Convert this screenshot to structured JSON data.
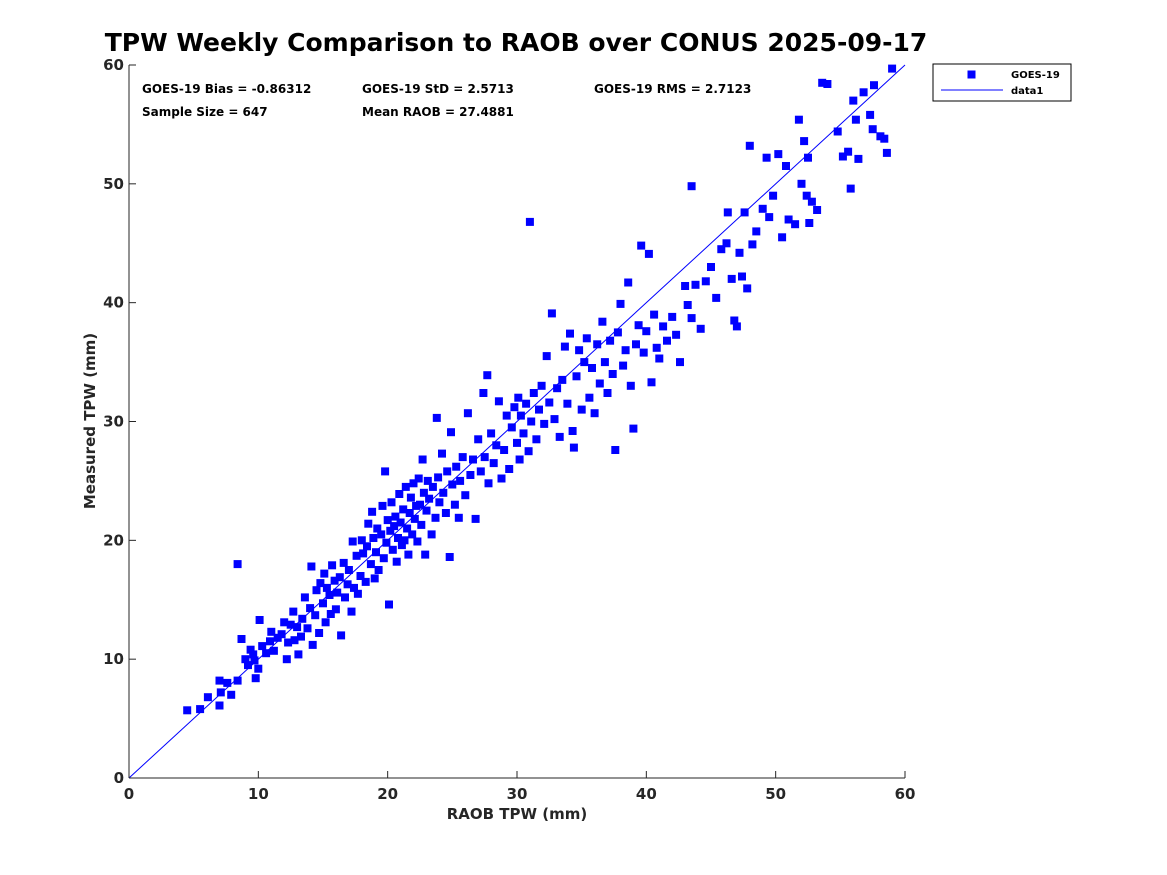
{
  "chart_data": {
    "type": "scatter",
    "title": "TPW Weekly Comparison to RAOB over CONUS 2025-09-17",
    "xlabel": "RAOB TPW (mm)",
    "ylabel": "Measured TPW (mm)",
    "xlim": [
      0,
      60
    ],
    "ylim": [
      0,
      60
    ],
    "xticks": [
      "0",
      "10",
      "20",
      "30",
      "40",
      "50",
      "60"
    ],
    "yticks": [
      "0",
      "10",
      "20",
      "30",
      "40",
      "50",
      "60"
    ],
    "grid": false,
    "legend_position": "outside-top-right",
    "marker_color": "#0000ff",
    "stats": {
      "bias": "GOES-19 Bias = -0.86312",
      "std": "GOES-19 StD = 2.5713",
      "rms": "GOES-19 RMS = 2.7123",
      "sample_size": "Sample Size = 647",
      "mean_raob": "Mean RAOB = 27.4881"
    },
    "series": [
      {
        "name": "GOES-19",
        "kind": "scatter",
        "marker": "square",
        "points": [
          [
            4.5,
            5.7
          ],
          [
            5.5,
            5.8
          ],
          [
            6.1,
            6.8
          ],
          [
            7.0,
            6.1
          ],
          [
            7.1,
            7.2
          ],
          [
            7.0,
            8.2
          ],
          [
            7.6,
            8.0
          ],
          [
            7.9,
            7.0
          ],
          [
            8.4,
            8.2
          ],
          [
            8.7,
            11.7
          ],
          [
            8.4,
            18.0
          ],
          [
            9.0,
            10.0
          ],
          [
            9.2,
            9.5
          ],
          [
            9.4,
            10.8
          ],
          [
            9.6,
            10.4
          ],
          [
            9.7,
            9.9
          ],
          [
            9.8,
            8.4
          ],
          [
            10.0,
            9.2
          ],
          [
            10.1,
            13.3
          ],
          [
            10.3,
            11.1
          ],
          [
            10.6,
            10.5
          ],
          [
            10.9,
            11.5
          ],
          [
            11.0,
            12.3
          ],
          [
            11.2,
            10.7
          ],
          [
            11.5,
            11.8
          ],
          [
            11.8,
            12.1
          ],
          [
            12.0,
            13.1
          ],
          [
            12.2,
            10.0
          ],
          [
            12.3,
            11.4
          ],
          [
            12.5,
            12.9
          ],
          [
            12.7,
            14.0
          ],
          [
            12.8,
            11.6
          ],
          [
            13.0,
            12.7
          ],
          [
            13.1,
            10.4
          ],
          [
            13.3,
            11.9
          ],
          [
            13.4,
            13.4
          ],
          [
            13.6,
            15.2
          ],
          [
            13.8,
            12.6
          ],
          [
            14.0,
            14.3
          ],
          [
            14.1,
            17.8
          ],
          [
            14.2,
            11.2
          ],
          [
            14.4,
            13.7
          ],
          [
            14.5,
            15.8
          ],
          [
            14.7,
            12.2
          ],
          [
            14.8,
            16.4
          ],
          [
            15.0,
            14.7
          ],
          [
            15.1,
            17.2
          ],
          [
            15.2,
            13.1
          ],
          [
            15.3,
            16.0
          ],
          [
            15.5,
            15.4
          ],
          [
            15.6,
            13.8
          ],
          [
            15.7,
            17.9
          ],
          [
            15.9,
            16.6
          ],
          [
            16.0,
            14.2
          ],
          [
            16.1,
            15.6
          ],
          [
            16.3,
            16.9
          ],
          [
            16.4,
            12.0
          ],
          [
            16.6,
            18.1
          ],
          [
            16.7,
            15.2
          ],
          [
            16.9,
            16.3
          ],
          [
            17.0,
            17.5
          ],
          [
            17.2,
            14.0
          ],
          [
            17.3,
            19.9
          ],
          [
            17.4,
            16.0
          ],
          [
            17.6,
            18.7
          ],
          [
            17.7,
            15.5
          ],
          [
            17.9,
            17.0
          ],
          [
            18.0,
            20.0
          ],
          [
            18.1,
            18.9
          ],
          [
            18.3,
            16.5
          ],
          [
            18.4,
            19.5
          ],
          [
            18.5,
            21.4
          ],
          [
            18.7,
            18.0
          ],
          [
            18.8,
            22.4
          ],
          [
            18.9,
            20.2
          ],
          [
            19.0,
            16.8
          ],
          [
            19.1,
            19.0
          ],
          [
            19.2,
            21.0
          ],
          [
            19.3,
            17.5
          ],
          [
            19.5,
            20.5
          ],
          [
            19.6,
            22.9
          ],
          [
            19.7,
            18.5
          ],
          [
            19.8,
            25.8
          ],
          [
            19.9,
            19.8
          ],
          [
            20.0,
            21.7
          ],
          [
            20.1,
            14.6
          ],
          [
            20.2,
            20.8
          ],
          [
            20.3,
            23.2
          ],
          [
            20.4,
            19.2
          ],
          [
            20.5,
            21.2
          ],
          [
            20.6,
            22.0
          ],
          [
            20.7,
            18.2
          ],
          [
            20.8,
            20.2
          ],
          [
            20.9,
            23.9
          ],
          [
            21.0,
            21.5
          ],
          [
            21.1,
            19.6
          ],
          [
            21.2,
            22.6
          ],
          [
            21.3,
            20.0
          ],
          [
            21.4,
            24.5
          ],
          [
            21.5,
            21.0
          ],
          [
            21.6,
            18.8
          ],
          [
            21.7,
            22.3
          ],
          [
            21.8,
            23.6
          ],
          [
            21.9,
            20.5
          ],
          [
            22.0,
            24.8
          ],
          [
            22.1,
            21.8
          ],
          [
            22.2,
            22.9
          ],
          [
            22.3,
            19.9
          ],
          [
            22.4,
            25.2
          ],
          [
            22.5,
            23.0
          ],
          [
            22.6,
            21.3
          ],
          [
            22.7,
            26.8
          ],
          [
            22.8,
            24.0
          ],
          [
            22.9,
            18.8
          ],
          [
            23.0,
            22.5
          ],
          [
            23.1,
            25.0
          ],
          [
            23.2,
            23.5
          ],
          [
            23.4,
            20.5
          ],
          [
            23.5,
            24.5
          ],
          [
            23.7,
            21.9
          ],
          [
            23.8,
            30.3
          ],
          [
            23.9,
            25.3
          ],
          [
            24.0,
            23.2
          ],
          [
            24.2,
            27.3
          ],
          [
            24.3,
            24.0
          ],
          [
            24.5,
            22.3
          ],
          [
            24.6,
            25.8
          ],
          [
            24.8,
            18.6
          ],
          [
            24.9,
            29.1
          ],
          [
            25.0,
            24.7
          ],
          [
            25.2,
            23.0
          ],
          [
            25.3,
            26.2
          ],
          [
            25.5,
            21.9
          ],
          [
            25.6,
            25.0
          ],
          [
            25.8,
            27.0
          ],
          [
            26.0,
            23.8
          ],
          [
            26.2,
            30.7
          ],
          [
            26.4,
            25.5
          ],
          [
            26.6,
            26.8
          ],
          [
            26.8,
            21.8
          ],
          [
            27.0,
            28.5
          ],
          [
            27.2,
            25.8
          ],
          [
            27.4,
            32.4
          ],
          [
            27.5,
            27.0
          ],
          [
            27.7,
            33.9
          ],
          [
            27.8,
            24.8
          ],
          [
            28.0,
            29.0
          ],
          [
            28.2,
            26.5
          ],
          [
            28.4,
            28.0
          ],
          [
            28.6,
            31.7
          ],
          [
            28.8,
            25.2
          ],
          [
            29.0,
            27.6
          ],
          [
            29.2,
            30.5
          ],
          [
            29.4,
            26.0
          ],
          [
            29.6,
            29.5
          ],
          [
            29.8,
            31.2
          ],
          [
            30.0,
            28.2
          ],
          [
            30.1,
            32.0
          ],
          [
            30.2,
            26.8
          ],
          [
            30.3,
            30.5
          ],
          [
            30.5,
            29.0
          ],
          [
            30.7,
            31.5
          ],
          [
            30.9,
            27.5
          ],
          [
            31.0,
            46.8
          ],
          [
            31.1,
            30.0
          ],
          [
            31.3,
            32.4
          ],
          [
            31.5,
            28.5
          ],
          [
            31.7,
            31.0
          ],
          [
            31.9,
            33.0
          ],
          [
            32.1,
            29.8
          ],
          [
            32.3,
            35.5
          ],
          [
            32.5,
            31.6
          ],
          [
            32.7,
            39.1
          ],
          [
            32.9,
            30.2
          ],
          [
            33.1,
            32.8
          ],
          [
            33.3,
            28.7
          ],
          [
            33.5,
            33.5
          ],
          [
            33.7,
            36.3
          ],
          [
            33.9,
            31.5
          ],
          [
            34.1,
            37.4
          ],
          [
            34.3,
            29.2
          ],
          [
            34.4,
            27.8
          ],
          [
            34.6,
            33.8
          ],
          [
            34.8,
            36.0
          ],
          [
            35.0,
            31.0
          ],
          [
            35.2,
            35.0
          ],
          [
            35.4,
            37.0
          ],
          [
            35.6,
            32.0
          ],
          [
            35.8,
            34.5
          ],
          [
            36.0,
            30.7
          ],
          [
            36.2,
            36.5
          ],
          [
            36.4,
            33.2
          ],
          [
            36.6,
            38.4
          ],
          [
            36.8,
            35.0
          ],
          [
            37.0,
            32.4
          ],
          [
            37.2,
            36.8
          ],
          [
            37.4,
            34.0
          ],
          [
            37.6,
            27.6
          ],
          [
            37.8,
            37.5
          ],
          [
            38.0,
            39.9
          ],
          [
            38.2,
            34.7
          ],
          [
            38.4,
            36.0
          ],
          [
            38.6,
            41.7
          ],
          [
            38.8,
            33.0
          ],
          [
            39.0,
            29.4
          ],
          [
            39.2,
            36.5
          ],
          [
            39.4,
            38.1
          ],
          [
            39.6,
            44.8
          ],
          [
            39.8,
            35.8
          ],
          [
            40.0,
            37.6
          ],
          [
            40.2,
            44.1
          ],
          [
            40.4,
            33.3
          ],
          [
            40.6,
            39.0
          ],
          [
            40.8,
            36.2
          ],
          [
            41.0,
            35.3
          ],
          [
            41.3,
            38.0
          ],
          [
            41.6,
            36.8
          ],
          [
            42.0,
            38.8
          ],
          [
            42.3,
            37.3
          ],
          [
            42.6,
            35.0
          ],
          [
            43.0,
            41.4
          ],
          [
            43.2,
            39.8
          ],
          [
            43.5,
            38.7
          ],
          [
            43.5,
            49.8
          ],
          [
            43.8,
            41.5
          ],
          [
            44.2,
            37.8
          ],
          [
            44.6,
            41.8
          ],
          [
            45.0,
            43.0
          ],
          [
            45.4,
            40.4
          ],
          [
            45.8,
            44.5
          ],
          [
            46.2,
            45.0
          ],
          [
            46.3,
            47.6
          ],
          [
            46.6,
            42.0
          ],
          [
            46.8,
            38.5
          ],
          [
            47.0,
            38.0
          ],
          [
            47.2,
            44.2
          ],
          [
            47.4,
            42.2
          ],
          [
            47.6,
            47.6
          ],
          [
            47.8,
            41.2
          ],
          [
            48.0,
            53.2
          ],
          [
            48.2,
            44.9
          ],
          [
            48.5,
            46.0
          ],
          [
            49.0,
            47.9
          ],
          [
            49.3,
            52.2
          ],
          [
            49.5,
            47.2
          ],
          [
            49.8,
            49.0
          ],
          [
            50.2,
            52.5
          ],
          [
            50.5,
            45.5
          ],
          [
            50.8,
            51.5
          ],
          [
            51.0,
            47.0
          ],
          [
            51.5,
            46.6
          ],
          [
            51.8,
            55.4
          ],
          [
            52.0,
            50.0
          ],
          [
            52.2,
            53.6
          ],
          [
            52.4,
            49.0
          ],
          [
            52.5,
            52.2
          ],
          [
            52.6,
            46.7
          ],
          [
            52.8,
            48.5
          ],
          [
            53.2,
            47.8
          ],
          [
            53.6,
            58.5
          ],
          [
            54.0,
            58.4
          ],
          [
            54.8,
            54.4
          ],
          [
            55.2,
            52.3
          ],
          [
            55.6,
            52.7
          ],
          [
            55.8,
            49.6
          ],
          [
            56.0,
            57.0
          ],
          [
            56.2,
            55.4
          ],
          [
            56.4,
            52.1
          ],
          [
            56.8,
            57.7
          ],
          [
            57.3,
            55.8
          ],
          [
            57.5,
            54.6
          ],
          [
            57.6,
            58.3
          ],
          [
            58.1,
            54.0
          ],
          [
            58.4,
            53.8
          ],
          [
            58.6,
            52.6
          ],
          [
            59.0,
            59.7
          ]
        ]
      },
      {
        "name": "data1",
        "kind": "line",
        "points": [
          [
            0,
            0
          ],
          [
            60,
            60
          ]
        ]
      }
    ]
  }
}
